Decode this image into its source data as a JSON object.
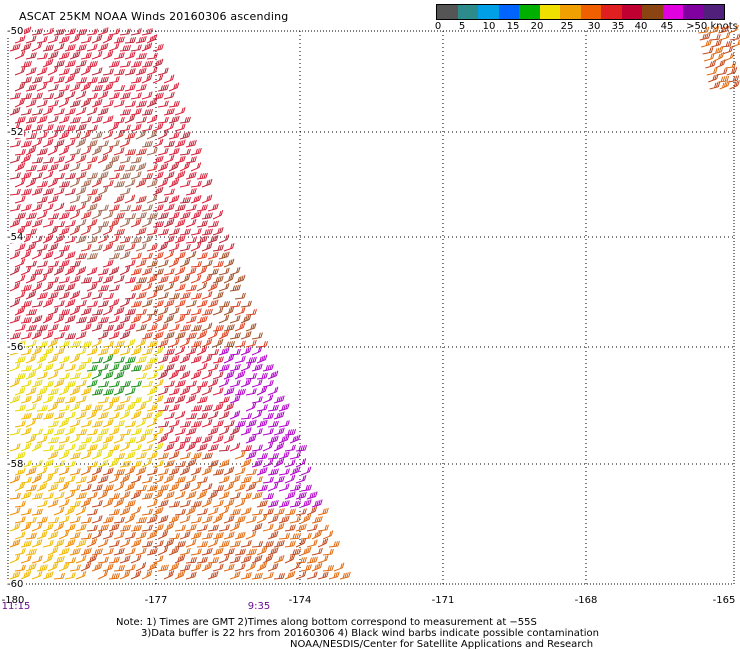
{
  "title": "ASCAT 25KM NOAA Winds 20160306 ascending",
  "colorbar": {
    "colors": [
      "#555555",
      "#2e8b8b",
      "#00a0e6",
      "#0064ff",
      "#00b000",
      "#f0e000",
      "#f0a000",
      "#f06000",
      "#e02020",
      "#c00030",
      "#8b4513",
      "#e000e0",
      "#8000a0",
      "#50207a"
    ],
    "tick_labels": [
      "0",
      "5",
      "10",
      "15",
      "20",
      "25",
      "30",
      "35",
      "40",
      "45",
      ">50 knots"
    ]
  },
  "lat_labels": [
    "-50",
    "-52",
    "-54",
    "-56",
    "-58",
    "-60"
  ],
  "lon_labels": [
    "-180",
    "-177",
    "-174",
    "-171",
    "-168",
    "-165"
  ],
  "time_labels": [
    "11:15",
    "9:35"
  ],
  "notes": {
    "line1": "Note: 1) Times are GMT 2)Times along bottom correspond to measurement at −55S",
    "line2": "3)Data buffer is 22 hrs from 20160306 4) Black wind barbs indicate possible contamination",
    "line3": "NOAA/NESDIS/Center for Satellite Applications and Research"
  }
}
